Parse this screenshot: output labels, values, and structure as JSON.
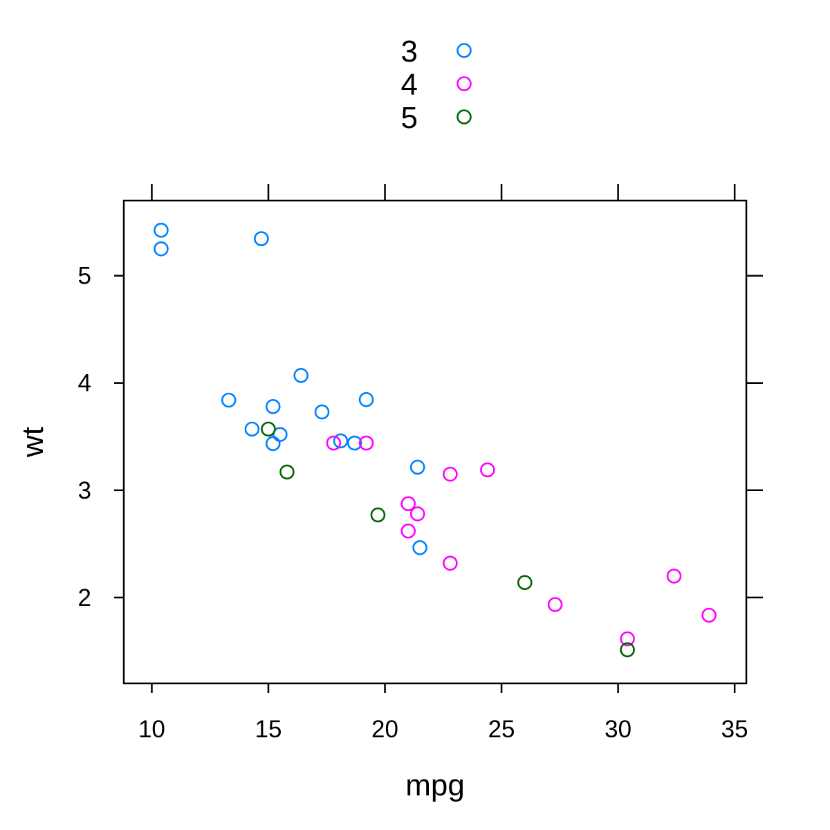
{
  "chart_data": {
    "type": "scatter",
    "xlabel": "mpg",
    "ylabel": "wt",
    "xlim": [
      8.8,
      35.5
    ],
    "ylim": [
      1.2,
      5.7
    ],
    "x_ticks": [
      10,
      15,
      20,
      25,
      30,
      35
    ],
    "y_ticks": [
      2,
      3,
      4,
      5
    ],
    "legend_position": "top",
    "grid": false,
    "series": [
      {
        "name": "3",
        "color": "#0080ff",
        "points": [
          {
            "x": 21.4,
            "y": 3.215
          },
          {
            "x": 18.7,
            "y": 3.44
          },
          {
            "x": 18.1,
            "y": 3.46
          },
          {
            "x": 14.3,
            "y": 3.57
          },
          {
            "x": 16.4,
            "y": 4.07
          },
          {
            "x": 17.3,
            "y": 3.73
          },
          {
            "x": 15.2,
            "y": 3.78
          },
          {
            "x": 10.4,
            "y": 5.25
          },
          {
            "x": 10.4,
            "y": 5.424
          },
          {
            "x": 14.7,
            "y": 5.345
          },
          {
            "x": 21.5,
            "y": 2.465
          },
          {
            "x": 15.5,
            "y": 3.52
          },
          {
            "x": 15.2,
            "y": 3.435
          },
          {
            "x": 13.3,
            "y": 3.84
          },
          {
            "x": 19.2,
            "y": 3.845
          }
        ]
      },
      {
        "name": "4",
        "color": "#ff00ff",
        "points": [
          {
            "x": 21.0,
            "y": 2.62
          },
          {
            "x": 21.0,
            "y": 2.875
          },
          {
            "x": 22.8,
            "y": 2.32
          },
          {
            "x": 24.4,
            "y": 3.19
          },
          {
            "x": 22.8,
            "y": 3.15
          },
          {
            "x": 19.2,
            "y": 3.44
          },
          {
            "x": 17.8,
            "y": 3.44
          },
          {
            "x": 32.4,
            "y": 2.2
          },
          {
            "x": 30.4,
            "y": 1.615
          },
          {
            "x": 33.9,
            "y": 1.835
          },
          {
            "x": 27.3,
            "y": 1.935
          },
          {
            "x": 21.4,
            "y": 2.78
          }
        ]
      },
      {
        "name": "5",
        "color": "#006400",
        "points": [
          {
            "x": 26.0,
            "y": 2.14
          },
          {
            "x": 30.4,
            "y": 1.513
          },
          {
            "x": 15.8,
            "y": 3.17
          },
          {
            "x": 19.7,
            "y": 2.77
          },
          {
            "x": 15.0,
            "y": 3.57
          }
        ]
      }
    ]
  }
}
